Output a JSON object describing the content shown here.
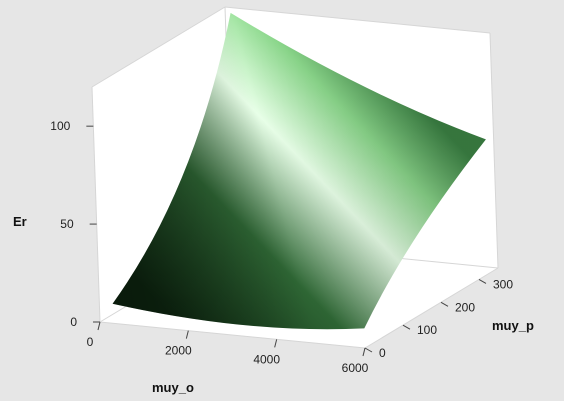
{
  "chart_data": {
    "type": "surface",
    "title": "",
    "xlabel": "muy_o",
    "ylabel": "muy_p",
    "zlabel": "Er",
    "x_ticks": [
      0,
      2000,
      4000,
      6000
    ],
    "y_ticks": [
      0,
      100,
      200,
      300
    ],
    "z_ticks": [
      0,
      50,
      100
    ],
    "xlim": [
      0,
      6000
    ],
    "ylim": [
      0,
      350
    ],
    "zlim": [
      0,
      120
    ],
    "grid": false,
    "colors": {
      "surface_dark": "#0f2a12",
      "surface_mid": "#3f8a48",
      "surface_light": "#e8ffe8",
      "background": "#e6e6e6",
      "box": "#ffffff"
    },
    "surface_corners": [
      {
        "muy_o": 300,
        "muy_p": 0,
        "Er": 10
      },
      {
        "muy_o": 6000,
        "muy_p": 0,
        "Er": 10
      },
      {
        "muy_o": 6000,
        "muy_p": 330,
        "Er": 68
      },
      {
        "muy_o": 300,
        "muy_p": 330,
        "Er": 120
      }
    ]
  }
}
